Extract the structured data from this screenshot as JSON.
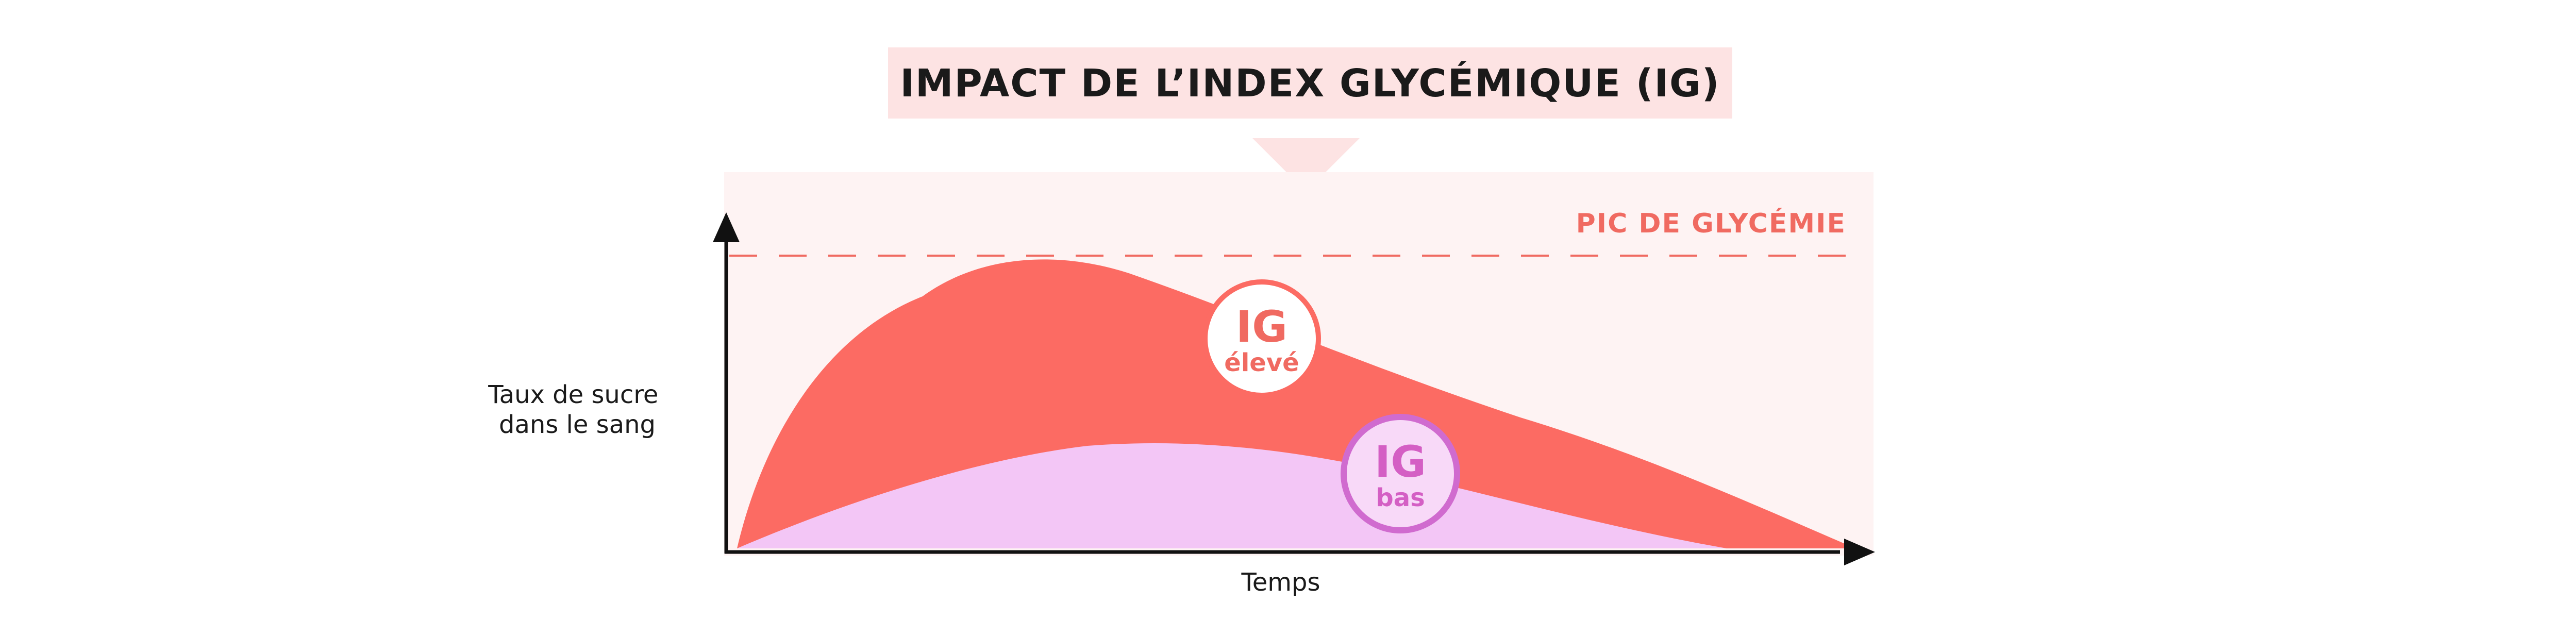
{
  "title": "IMPACT DE L’INDEX GLYCÉMIQUE (IG)",
  "peak_label": "PIC DE GLYCÉMIE",
  "y_axis_label": [
    "Taux de sucre",
    "dans le sang"
  ],
  "x_axis_label": "Temps",
  "badges": {
    "high": {
      "line1": "IG",
      "line2": "élevé"
    },
    "low": {
      "line1": "IG",
      "line2": "bas"
    }
  },
  "colors": {
    "title_band": "#fde3e3",
    "plot_background": "#fef3f3",
    "high_curve": "#fc6b63",
    "low_curve": "#f3c6f6",
    "peak_line": "#f06a61",
    "high_badge_text": "#f06a61",
    "low_badge_text": "#d45fc4",
    "low_badge_ring": "#d06bcf",
    "axis": "#111111"
  }
}
